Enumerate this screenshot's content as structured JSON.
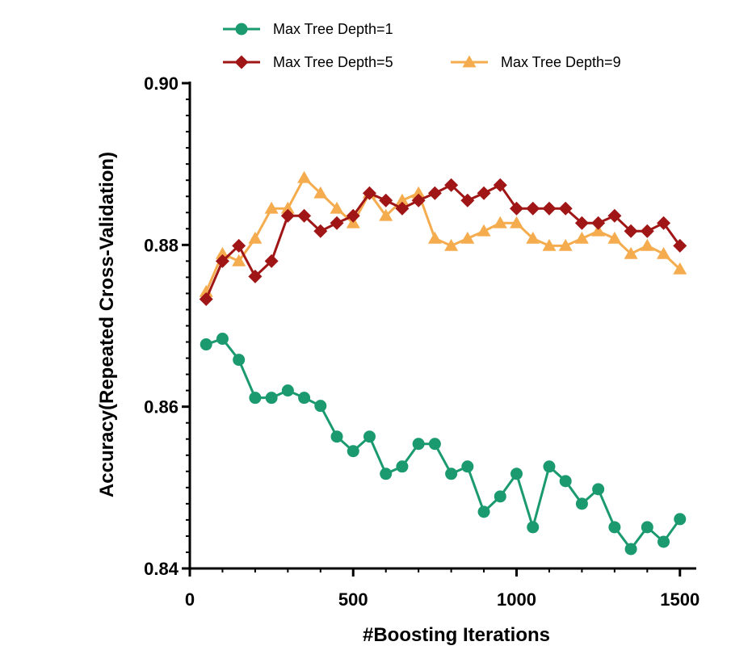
{
  "chart_data": {
    "type": "line",
    "title": "",
    "xlabel": "#Boosting Iterations",
    "ylabel": "Accuracy(Repeated Cross-Validation)",
    "xlim": [
      0,
      1550
    ],
    "ylim": [
      0.84,
      0.9
    ],
    "xticks": [
      0,
      500,
      1000,
      1500
    ],
    "xtick_labels": [
      "0",
      "500",
      "1000",
      "1500"
    ],
    "yticks": [
      0.84,
      0.86,
      0.88,
      0.9
    ],
    "ytick_labels": [
      "0.84",
      "0.86",
      "0.88",
      "0.90"
    ],
    "legend_position": "top",
    "x": [
      50,
      100,
      150,
      200,
      250,
      300,
      350,
      400,
      450,
      500,
      550,
      600,
      650,
      700,
      750,
      800,
      850,
      900,
      950,
      1000,
      1050,
      1100,
      1150,
      1200,
      1250,
      1300,
      1350,
      1400,
      1450,
      1500
    ],
    "series": [
      {
        "name": "Max Tree Depth=1",
        "color": "#1a9a6e",
        "marker": "circle",
        "values": [
          0.8677,
          0.8684,
          0.8658,
          0.8611,
          0.8611,
          0.862,
          0.8611,
          0.8601,
          0.8563,
          0.8545,
          0.8563,
          0.8517,
          0.8526,
          0.8554,
          0.8554,
          0.8517,
          0.8526,
          0.847,
          0.8489,
          0.8517,
          0.8451,
          0.8526,
          0.8508,
          0.848,
          0.8498,
          0.8451,
          0.8424,
          0.8451,
          0.8433,
          0.8461
        ]
      },
      {
        "name": "Max Tree Depth=5",
        "color": "#a01616",
        "marker": "diamond",
        "values": [
          0.8733,
          0.878,
          0.8799,
          0.8761,
          0.878,
          0.8836,
          0.8836,
          0.8817,
          0.8827,
          0.8836,
          0.8864,
          0.8855,
          0.8845,
          0.8855,
          0.8864,
          0.8874,
          0.8855,
          0.8864,
          0.8874,
          0.8845,
          0.8845,
          0.8845,
          0.8845,
          0.8827,
          0.8827,
          0.8836,
          0.8817,
          0.8817,
          0.8827,
          0.8799
        ]
      },
      {
        "name": "Max Tree Depth=9",
        "color": "#f5ac4e",
        "marker": "triangle",
        "values": [
          0.8742,
          0.8789,
          0.878,
          0.8808,
          0.8845,
          0.8845,
          0.8883,
          0.8864,
          0.8845,
          0.8827,
          0.8864,
          0.8836,
          0.8855,
          0.8864,
          0.8808,
          0.8799,
          0.8808,
          0.8817,
          0.8827,
          0.8827,
          0.8808,
          0.8799,
          0.8799,
          0.8808,
          0.8817,
          0.8808,
          0.8789,
          0.8799,
          0.8789,
          0.877
        ]
      }
    ]
  }
}
